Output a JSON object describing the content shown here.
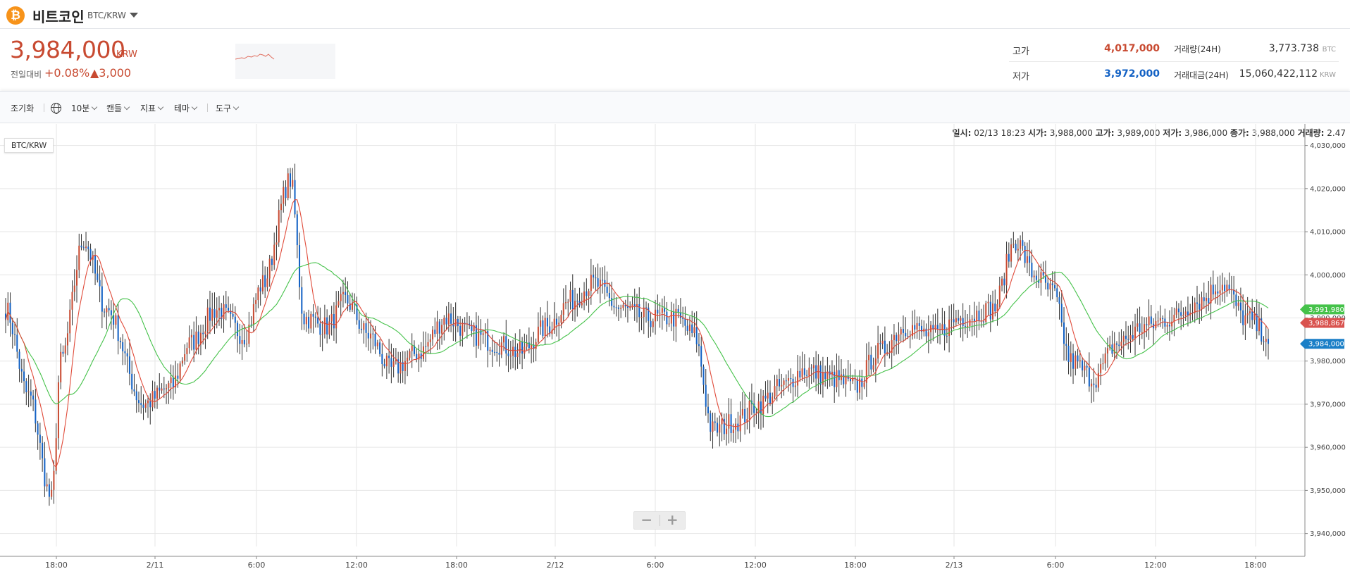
{
  "header": {
    "coin_symbol": "₿",
    "coin_name": "비트코인",
    "pair": "BTC/KRW"
  },
  "price": {
    "current": "3,984,000",
    "unit": "KRW",
    "change_label": "전일대비",
    "change_pct": "+0.08%",
    "change_amount": "▲3,000"
  },
  "stats": {
    "high_label": "고가",
    "high_value": "4,017,000",
    "low_label": "저가",
    "low_value": "3,972,000",
    "volume_label": "거래량(24H)",
    "volume_value": "3,773.738",
    "volume_unit": "BTC",
    "turnover_label": "거래대금(24H)",
    "turnover_value": "15,060,422,112",
    "turnover_unit": "KRW"
  },
  "toolbar": {
    "reset": "조기화",
    "interval": "10분",
    "candle": "캔들",
    "indicator": "지표",
    "theme": "테마",
    "tools": "도구"
  },
  "ohlc": {
    "time_label": "일시:",
    "time_value": "02/13 18:23",
    "open_label": "시가:",
    "open_value": "3,988,000",
    "high_label": "고가:",
    "high_value": "3,989,000",
    "low_label": "저가:",
    "low_value": "3,986,000",
    "close_label": "종가:",
    "close_value": "3,988,000",
    "vol_label": "거래량:",
    "vol_value": "2.47"
  },
  "legend": "BTC/KRW",
  "zoom": {
    "minus": "−",
    "plus": "+"
  },
  "colors": {
    "up": "#c84a31",
    "down": "#1261c4",
    "ma_short": "#e04b3a",
    "ma_long": "#45c24a",
    "grid": "#e6e6e6"
  },
  "chart_data": {
    "type": "candlestick",
    "pair": "BTC/KRW",
    "interval": "10분",
    "ylim": [
      3937000,
      4035000
    ],
    "y_ticks": [
      "4,030,000",
      "4,020,000",
      "4,010,000",
      "4,000,000",
      "3,990,000",
      "3,980,000",
      "3,970,000",
      "3,960,000",
      "3,950,000",
      "3,940,000"
    ],
    "y_tick_values": [
      4030000,
      4020000,
      4010000,
      4000000,
      3990000,
      3980000,
      3970000,
      3960000,
      3950000,
      3940000
    ],
    "x_ticks": [
      "18:00",
      "2/11",
      "6:00",
      "12:00",
      "18:00",
      "2/12",
      "6:00",
      "12:00",
      "18:00",
      "2/13",
      "6:00",
      "12:00",
      "18:00"
    ],
    "price_tags": [
      {
        "label": "3,991,980",
        "value": 3991980,
        "color": "#45c24a"
      },
      {
        "label": "3,988,867",
        "value": 3988867,
        "color": "#d9534f"
      },
      {
        "label": "3,984,000",
        "value": 3984000,
        "color": "#1a7fc7"
      }
    ],
    "close_anchors": [
      [
        0,
        3992000
      ],
      [
        10,
        3972000
      ],
      [
        20,
        3948000
      ],
      [
        24,
        3980000
      ],
      [
        34,
        4008000
      ],
      [
        44,
        3992000
      ],
      [
        60,
        3970000
      ],
      [
        72,
        3974000
      ],
      [
        80,
        3984000
      ],
      [
        92,
        3992000
      ],
      [
        104,
        3986000
      ],
      [
        112,
        3998000
      ],
      [
        124,
        4022000
      ],
      [
        130,
        3990000
      ],
      [
        140,
        3988000
      ],
      [
        148,
        3994000
      ],
      [
        158,
        3986000
      ],
      [
        168,
        3978000
      ],
      [
        180,
        3982000
      ],
      [
        192,
        3990000
      ],
      [
        204,
        3986000
      ],
      [
        214,
        3984000
      ],
      [
        224,
        3982000
      ],
      [
        236,
        3988000
      ],
      [
        246,
        3994000
      ],
      [
        256,
        3998000
      ],
      [
        268,
        3992000
      ],
      [
        280,
        3990000
      ],
      [
        292,
        3990000
      ],
      [
        300,
        3986000
      ],
      [
        308,
        3964000
      ],
      [
        318,
        3966000
      ],
      [
        328,
        3970000
      ],
      [
        338,
        3974000
      ],
      [
        348,
        3978000
      ],
      [
        360,
        3976000
      ],
      [
        370,
        3974000
      ],
      [
        380,
        3982000
      ],
      [
        392,
        3988000
      ],
      [
        404,
        3986000
      ],
      [
        416,
        3990000
      ],
      [
        430,
        3992000
      ],
      [
        440,
        4008000
      ],
      [
        448,
        4000000
      ],
      [
        456,
        3996000
      ],
      [
        464,
        3980000
      ],
      [
        474,
        3976000
      ],
      [
        484,
        3984000
      ],
      [
        496,
        3988000
      ],
      [
        508,
        3990000
      ],
      [
        520,
        3994000
      ],
      [
        530,
        3998000
      ],
      [
        540,
        3990000
      ],
      [
        550,
        3986000
      ]
    ]
  }
}
